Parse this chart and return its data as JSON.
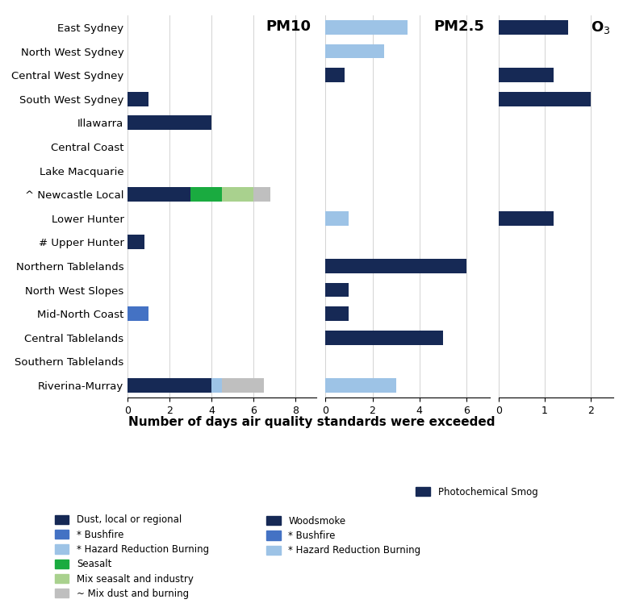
{
  "sites": [
    "East Sydney",
    "North West Sydney",
    "Central West Sydney",
    "South West Sydney",
    "Illawarra",
    "Central Coast",
    "Lake Macquarie",
    "^ Newcastle Local",
    "Lower Hunter",
    "# Upper Hunter",
    "Northern Tablelands",
    "North West Slopes",
    "Mid-North Coast",
    "Central Tablelands",
    "Southern Tablelands",
    "Riverina-Murray"
  ],
  "pm10": {
    "dust": [
      0,
      0,
      0,
      1.0,
      4.0,
      0,
      0,
      3.0,
      0,
      0.8,
      0,
      0,
      0,
      0,
      0,
      4.0
    ],
    "bushfire": [
      0,
      0,
      0,
      0,
      0,
      0,
      0,
      0,
      0,
      0,
      0,
      0,
      1.0,
      0,
      0,
      0
    ],
    "hazard": [
      0,
      0,
      0,
      0,
      0,
      0,
      0,
      0,
      0,
      0,
      0,
      0,
      0,
      0,
      0,
      0.5
    ],
    "seasalt": [
      0,
      0,
      0,
      0,
      0,
      0,
      0,
      1.5,
      0,
      0,
      0,
      0,
      0,
      0,
      0,
      0
    ],
    "mix_seasalt": [
      0,
      0,
      0,
      0,
      0,
      0,
      0,
      1.5,
      0,
      0,
      0,
      0,
      0,
      0,
      0,
      0
    ],
    "mix_dust": [
      0,
      0,
      0,
      0,
      0,
      0,
      0,
      0.8,
      0,
      0,
      0,
      0,
      0,
      0,
      0,
      2.0
    ]
  },
  "pm25": {
    "woodsmoke": [
      0,
      0,
      0.8,
      0,
      0,
      0,
      0,
      0,
      0,
      0,
      6.0,
      1.0,
      1.0,
      5.0,
      0,
      0
    ],
    "bushfire": [
      0,
      0,
      0,
      0,
      0,
      0,
      0,
      0,
      0,
      0,
      0,
      0,
      0,
      0,
      0,
      0
    ],
    "hazard": [
      3.5,
      2.5,
      0,
      0,
      0,
      0,
      0,
      0,
      1.0,
      0,
      0,
      0,
      0,
      0,
      0,
      3.0
    ]
  },
  "o3": {
    "photochem": [
      1.5,
      0,
      1.2,
      2.0,
      0,
      0,
      0,
      0,
      1.2,
      0,
      0,
      0,
      0,
      0,
      0,
      0
    ]
  },
  "colors": {
    "dust": "#162955",
    "bushfire_pm10": "#4472c4",
    "hazard_pm10": "#9dc3e6",
    "seasalt": "#1aab40",
    "mix_seasalt": "#a9d18e",
    "mix_dust": "#bfbfbf",
    "woodsmoke": "#162955",
    "bushfire_pm25": "#4472c4",
    "hazard_pm25": "#9dc3e6",
    "photochem": "#162955"
  },
  "title": "Number of days air quality standards were exceeded",
  "pm10_label": "PM10",
  "pm25_label": "PM2.5",
  "o3_label": "O$_3$",
  "pm10_xlim": [
    0,
    9
  ],
  "pm25_xlim": [
    0,
    7
  ],
  "o3_xlim": [
    0,
    2.5
  ],
  "pm10_xticks": [
    0,
    2,
    4,
    6,
    8
  ],
  "pm25_xticks": [
    0,
    2,
    4,
    6
  ],
  "o3_xticks": [
    0,
    1,
    2
  ],
  "legend_col1": [
    {
      "label": "Dust, local or regional",
      "color": "#162955"
    },
    {
      "label": "* Bushfire",
      "color": "#4472c4"
    },
    {
      "label": "* Hazard Reduction Burning",
      "color": "#9dc3e6"
    },
    {
      "label": "Seasalt",
      "color": "#1aab40"
    },
    {
      "label": "Mix seasalt and industry",
      "color": "#a9d18e"
    },
    {
      "label": "~ Mix dust and burning",
      "color": "#bfbfbf"
    }
  ],
  "legend_col2": [
    {
      "label": "Woodsmoke",
      "color": "#162955"
    },
    {
      "label": "* Bushfire",
      "color": "#4472c4"
    },
    {
      "label": "* Hazard Reduction Burning",
      "color": "#9dc3e6"
    }
  ],
  "legend_col3": [
    {
      "label": "Photochemical Smog",
      "color": "#162955"
    }
  ]
}
